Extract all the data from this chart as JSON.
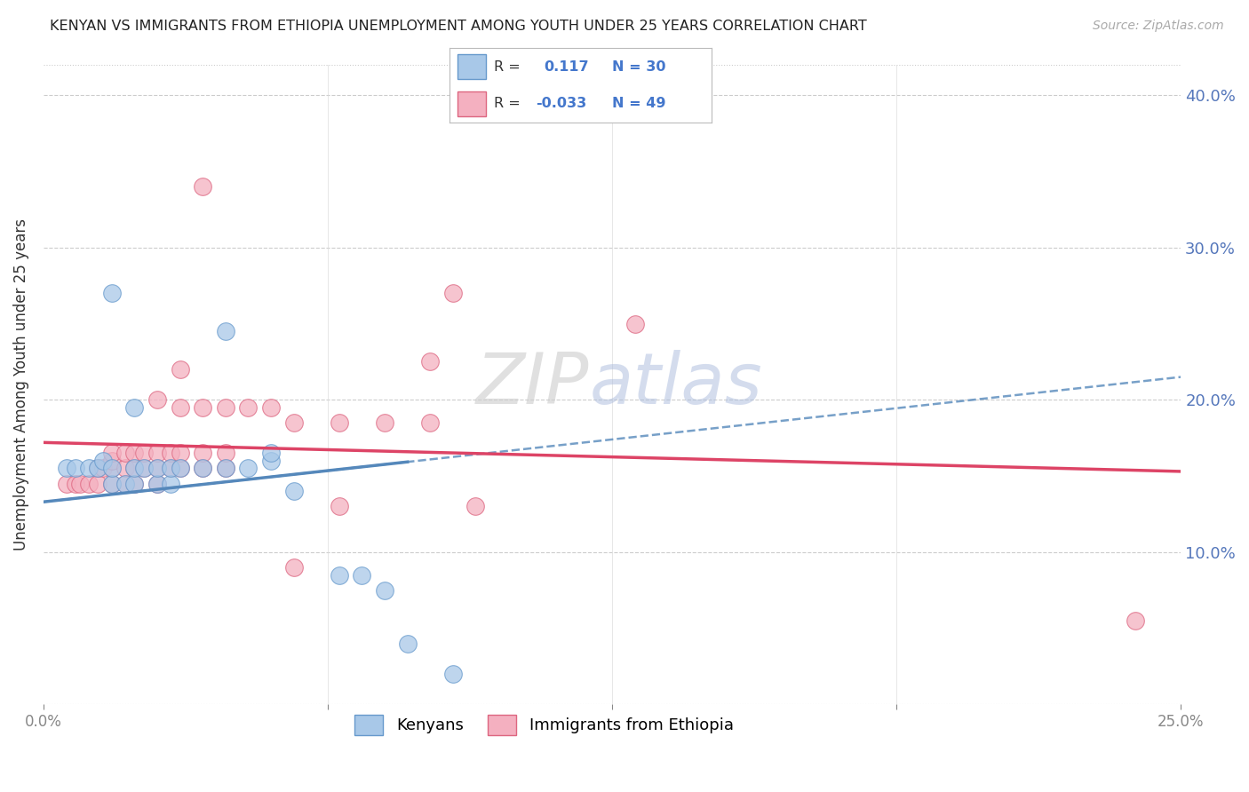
{
  "title": "KENYAN VS IMMIGRANTS FROM ETHIOPIA UNEMPLOYMENT AMONG YOUTH UNDER 25 YEARS CORRELATION CHART",
  "source": "Source: ZipAtlas.com",
  "ylabel": "Unemployment Among Youth under 25 years",
  "legend_label1": "Kenyans",
  "legend_label2": "Immigrants from Ethiopia",
  "R1": 0.117,
  "N1": 30,
  "R2": -0.033,
  "N2": 49,
  "color_blue": "#a8c8e8",
  "color_pink": "#f4b0c0",
  "edge_blue": "#6699cc",
  "edge_pink": "#dd6680",
  "trendline_blue": "#5588bb",
  "trendline_pink": "#dd4466",
  "watermark_zip": "ZIP",
  "watermark_atlas": "atlas",
  "xlim": [
    0.0,
    0.25
  ],
  "ylim": [
    0.0,
    0.42
  ],
  "yticks": [
    0.1,
    0.2,
    0.3,
    0.4
  ],
  "ytick_labels": [
    "10.0%",
    "20.0%",
    "30.0%",
    "40.0%"
  ],
  "blue_trendline_y0": 0.133,
  "blue_trendline_y1": 0.215,
  "blue_trendline_dashed_y0": 0.155,
  "blue_trendline_dashed_y1": 0.222,
  "pink_trendline_y0": 0.172,
  "pink_trendline_y1": 0.153,
  "blue_points": [
    [
      0.005,
      0.155
    ],
    [
      0.007,
      0.155
    ],
    [
      0.01,
      0.155
    ],
    [
      0.012,
      0.155
    ],
    [
      0.013,
      0.16
    ],
    [
      0.015,
      0.145
    ],
    [
      0.015,
      0.155
    ],
    [
      0.018,
      0.145
    ],
    [
      0.02,
      0.145
    ],
    [
      0.02,
      0.155
    ],
    [
      0.02,
      0.195
    ],
    [
      0.022,
      0.155
    ],
    [
      0.025,
      0.145
    ],
    [
      0.025,
      0.155
    ],
    [
      0.028,
      0.145
    ],
    [
      0.028,
      0.155
    ],
    [
      0.03,
      0.155
    ],
    [
      0.035,
      0.155
    ],
    [
      0.04,
      0.155
    ],
    [
      0.045,
      0.155
    ],
    [
      0.015,
      0.27
    ],
    [
      0.04,
      0.245
    ],
    [
      0.05,
      0.16
    ],
    [
      0.05,
      0.165
    ],
    [
      0.055,
      0.14
    ],
    [
      0.065,
      0.085
    ],
    [
      0.07,
      0.085
    ],
    [
      0.075,
      0.075
    ],
    [
      0.08,
      0.04
    ],
    [
      0.09,
      0.02
    ]
  ],
  "pink_points": [
    [
      0.005,
      0.145
    ],
    [
      0.007,
      0.145
    ],
    [
      0.008,
      0.145
    ],
    [
      0.01,
      0.145
    ],
    [
      0.012,
      0.145
    ],
    [
      0.012,
      0.155
    ],
    [
      0.013,
      0.155
    ],
    [
      0.015,
      0.145
    ],
    [
      0.015,
      0.155
    ],
    [
      0.015,
      0.16
    ],
    [
      0.015,
      0.165
    ],
    [
      0.018,
      0.145
    ],
    [
      0.018,
      0.155
    ],
    [
      0.018,
      0.165
    ],
    [
      0.02,
      0.145
    ],
    [
      0.02,
      0.155
    ],
    [
      0.02,
      0.165
    ],
    [
      0.022,
      0.155
    ],
    [
      0.022,
      0.165
    ],
    [
      0.025,
      0.145
    ],
    [
      0.025,
      0.155
    ],
    [
      0.025,
      0.165
    ],
    [
      0.028,
      0.155
    ],
    [
      0.028,
      0.165
    ],
    [
      0.03,
      0.155
    ],
    [
      0.03,
      0.165
    ],
    [
      0.035,
      0.155
    ],
    [
      0.035,
      0.165
    ],
    [
      0.04,
      0.155
    ],
    [
      0.04,
      0.165
    ],
    [
      0.025,
      0.2
    ],
    [
      0.03,
      0.195
    ],
    [
      0.035,
      0.195
    ],
    [
      0.04,
      0.195
    ],
    [
      0.045,
      0.195
    ],
    [
      0.05,
      0.195
    ],
    [
      0.055,
      0.185
    ],
    [
      0.065,
      0.185
    ],
    [
      0.075,
      0.185
    ],
    [
      0.085,
      0.185
    ],
    [
      0.03,
      0.22
    ],
    [
      0.085,
      0.225
    ],
    [
      0.035,
      0.34
    ],
    [
      0.09,
      0.27
    ],
    [
      0.13,
      0.25
    ],
    [
      0.065,
      0.13
    ],
    [
      0.095,
      0.13
    ],
    [
      0.24,
      0.055
    ],
    [
      0.055,
      0.09
    ]
  ]
}
